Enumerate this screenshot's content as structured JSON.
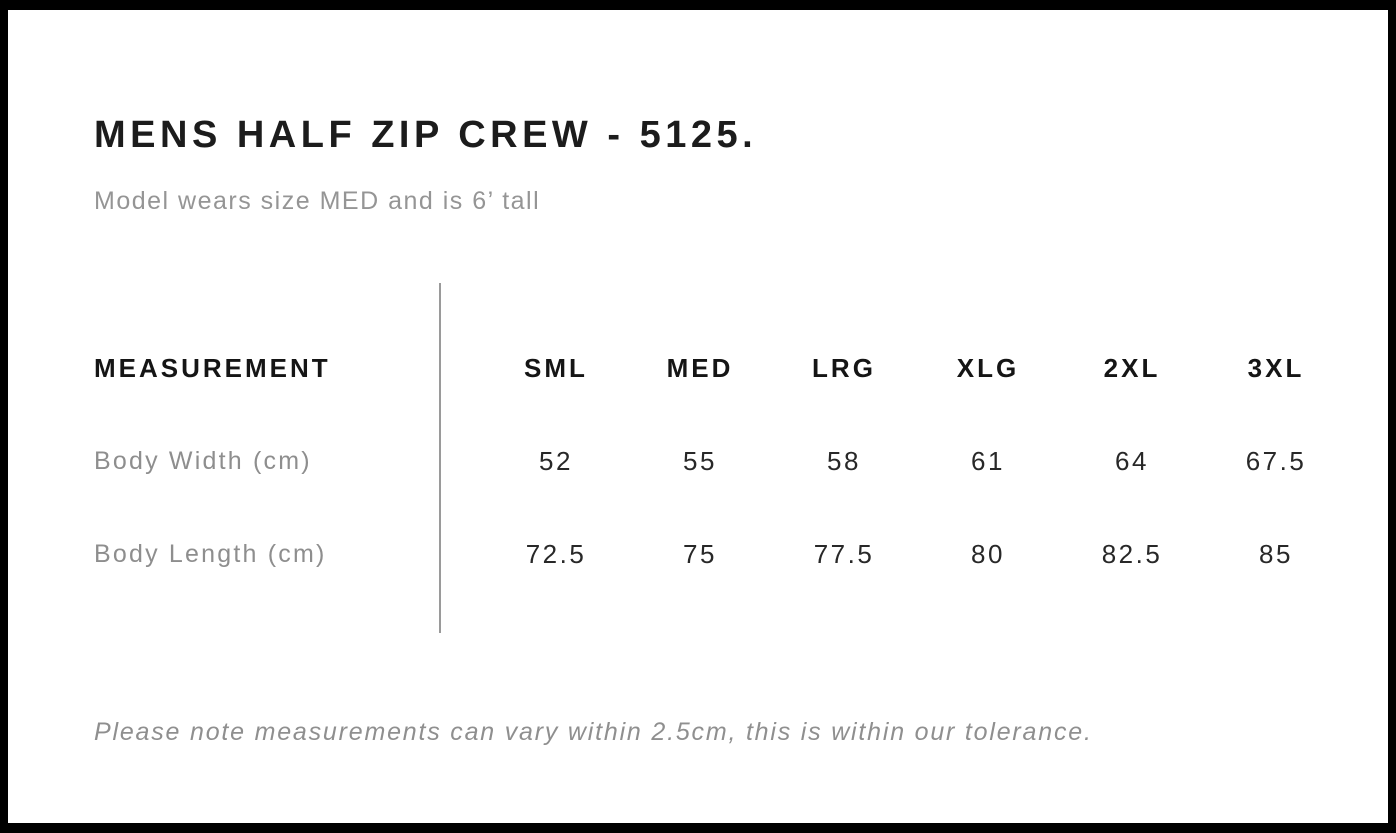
{
  "header": {
    "title": "MENS HALF ZIP CREW - 5125.",
    "subtitle": "Model wears size MED and is 6’ tall"
  },
  "table": {
    "measurement_header": "MEASUREMENT",
    "sizes": [
      "SML",
      "MED",
      "LRG",
      "XLG",
      "2XL",
      "3XL"
    ],
    "rows": [
      {
        "label": "Body Width (cm)",
        "values": [
          "52",
          "55",
          "58",
          "61",
          "64",
          "67.5"
        ]
      },
      {
        "label": "Body Length (cm)",
        "values": [
          "72.5",
          "75",
          "77.5",
          "80",
          "82.5",
          "85"
        ]
      }
    ]
  },
  "footer": {
    "note": "Please note measurements can vary within 2.5cm, this is within our tolerance."
  },
  "colors": {
    "frame": "#000000",
    "title_text": "#1c1c1c",
    "header_text": "#151515",
    "value_text": "#282828",
    "muted_text": "#8f8f8f",
    "divider": "#9a9a9a",
    "background": "#ffffff"
  }
}
